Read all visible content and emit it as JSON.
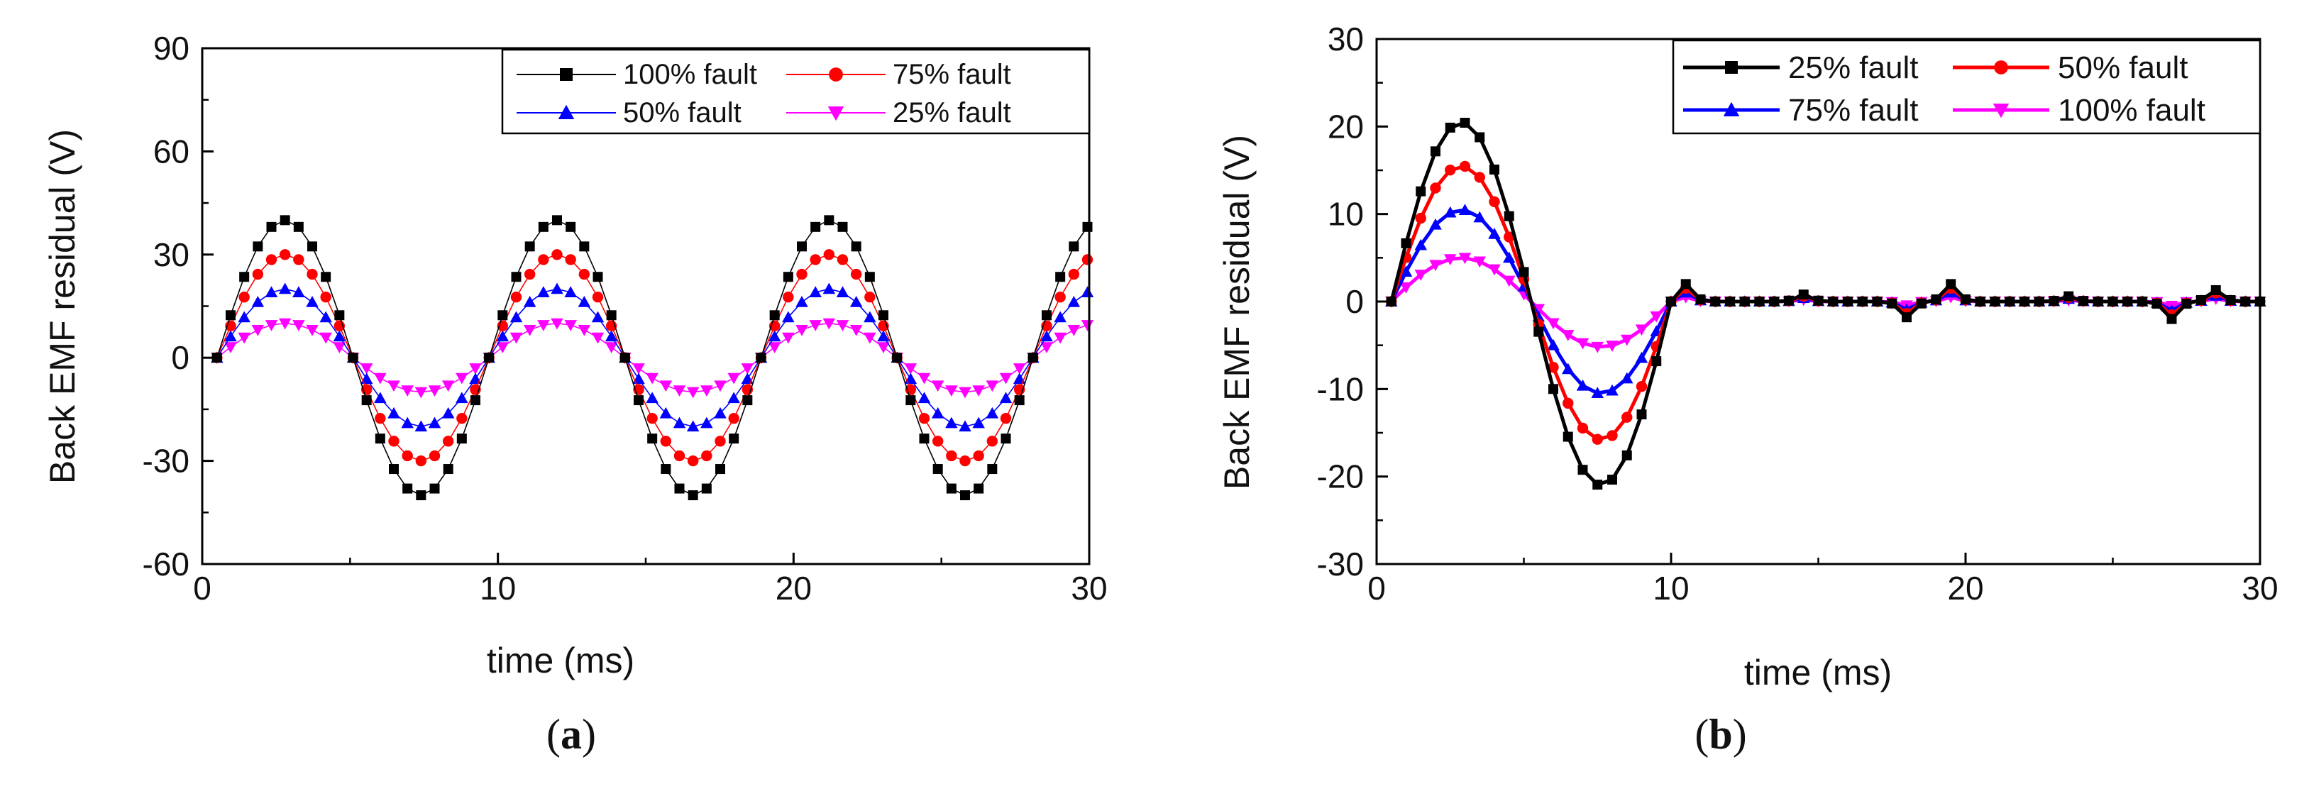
{
  "chart_data": [
    {
      "type": "line",
      "panel": "a",
      "caption_letter": "a",
      "xlabel": "time (ms)",
      "ylabel": "Back EMF residual (V)",
      "xlim": [
        0,
        30
      ],
      "ylim": [
        -60,
        90
      ],
      "xticks": [
        0,
        10,
        20,
        30
      ],
      "yticks": [
        -60,
        -30,
        0,
        30,
        60,
        90
      ],
      "grid": false,
      "legend_position": "top-right",
      "line_style": "thin",
      "series": [
        {
          "name": "100% fault",
          "color": "#000000",
          "marker": "square",
          "amplitude": 40,
          "period_ms": 9.2
        },
        {
          "name": "75% fault",
          "color": "#ff0000",
          "marker": "circle",
          "amplitude": 30,
          "period_ms": 9.2
        },
        {
          "name": "50% fault",
          "color": "#0000ff",
          "marker": "triangle-up",
          "amplitude": 20,
          "period_ms": 9.2
        },
        {
          "name": "25% fault",
          "color": "#ff00ff",
          "marker": "triangle-down",
          "amplitude": 10,
          "period_ms": 9.2
        }
      ],
      "x_start_ms": 0.5,
      "x_step_ms": 0.46
    },
    {
      "type": "line",
      "panel": "b",
      "caption_letter": "b",
      "xlabel": "time (ms)",
      "ylabel": "Back EMF residual (V)",
      "xlim": [
        0,
        30
      ],
      "ylim": [
        -30,
        30
      ],
      "xticks": [
        0,
        10,
        20,
        30
      ],
      "yticks": [
        -30,
        -20,
        -10,
        0,
        10,
        20,
        30
      ],
      "grid": false,
      "legend_position": "top-right",
      "line_style": "thick",
      "series": [
        {
          "name": "25% fault",
          "color": "#000000",
          "marker": "square",
          "peak": 20.5,
          "trough": -21
        },
        {
          "name": "50% fault",
          "color": "#ff0000",
          "marker": "circle",
          "peak": 15.5,
          "trough": -15.8
        },
        {
          "name": "75% fault",
          "color": "#0000ff",
          "marker": "triangle-up",
          "peak": 10.5,
          "trough": -10.5
        },
        {
          "name": "100% fault",
          "color": "#ff00ff",
          "marker": "triangle-down",
          "peak": 5,
          "trough": -5.2
        }
      ],
      "pulse_end_ms": 10,
      "x_start_ms": 0.5,
      "x_step_ms": 0.5,
      "blips": [
        {
          "x": 10.5,
          "scale": 2.0
        },
        {
          "x": 14.5,
          "scale": 0.8
        },
        {
          "x": 18.0,
          "scale": -1.8
        },
        {
          "x": 19.5,
          "scale": 2.0
        },
        {
          "x": 23.5,
          "scale": 0.6
        },
        {
          "x": 27.0,
          "scale": -2.0
        },
        {
          "x": 28.5,
          "scale": 1.3
        }
      ]
    }
  ]
}
